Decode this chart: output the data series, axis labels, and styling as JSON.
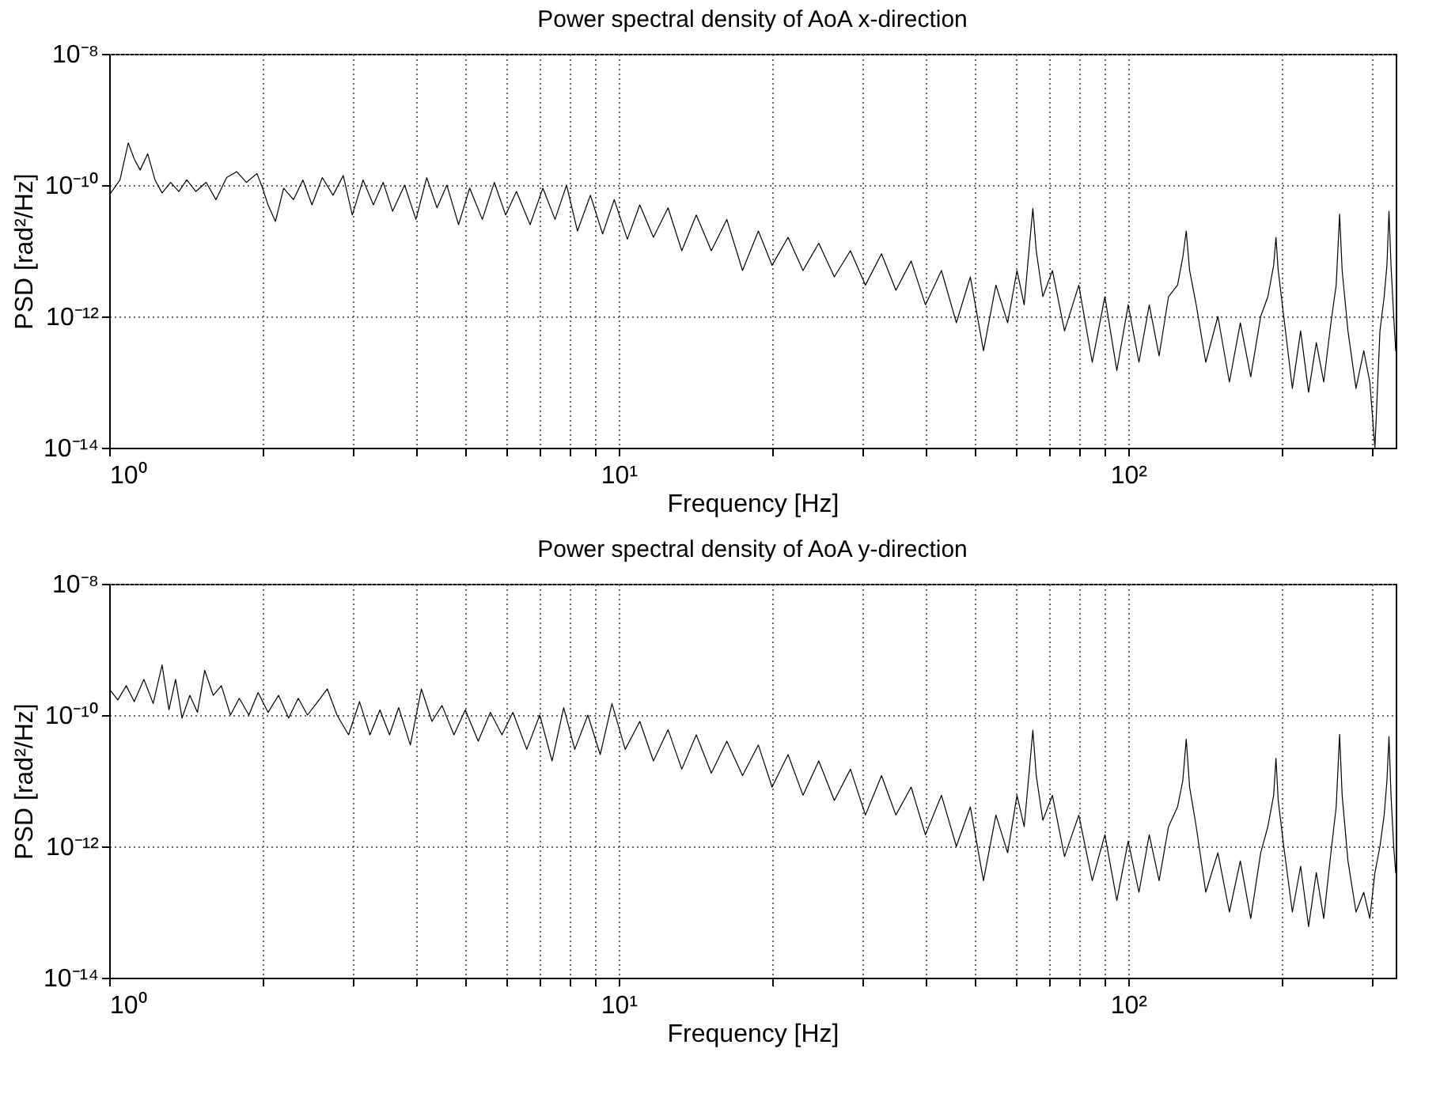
{
  "chart_data": [
    {
      "type": "line",
      "title": "Power spectral density of AoA x-direction",
      "xlabel": "Frequency [Hz]",
      "ylabel": "PSD [rad²/Hz]",
      "log": "xy",
      "grid": true,
      "xlim": [
        1,
        335
      ],
      "ylim": [
        1e-14,
        1e-08
      ],
      "xticks": [
        {
          "value": 1,
          "label": "10⁰"
        },
        {
          "value": 2,
          "label": null
        },
        {
          "value": 3,
          "label": null
        },
        {
          "value": 4,
          "label": null
        },
        {
          "value": 5,
          "label": null
        },
        {
          "value": 6,
          "label": null
        },
        {
          "value": 7,
          "label": null
        },
        {
          "value": 8,
          "label": null
        },
        {
          "value": 9,
          "label": null
        },
        {
          "value": 10,
          "label": "10¹"
        },
        {
          "value": 20,
          "label": null
        },
        {
          "value": 30,
          "label": null
        },
        {
          "value": 40,
          "label": null
        },
        {
          "value": 50,
          "label": null
        },
        {
          "value": 60,
          "label": null
        },
        {
          "value": 70,
          "label": null
        },
        {
          "value": 80,
          "label": null
        },
        {
          "value": 90,
          "label": null
        },
        {
          "value": 100,
          "label": "10²"
        },
        {
          "value": 200,
          "label": null
        },
        {
          "value": 300,
          "label": null
        }
      ],
      "yticks": [
        {
          "value": 1e-14,
          "label": "10⁻¹⁴"
        },
        {
          "value": 1e-12,
          "label": "10⁻¹²"
        },
        {
          "value": 1e-10,
          "label": "10⁻¹⁰"
        },
        {
          "value": 1e-08,
          "label": "10⁻⁸"
        }
      ],
      "x": [
        1,
        1.05,
        1.09,
        1.12,
        1.15,
        1.19,
        1.23,
        1.27,
        1.32,
        1.37,
        1.42,
        1.48,
        1.55,
        1.62,
        1.7,
        1.78,
        1.86,
        1.95,
        2.0,
        2.05,
        2.12,
        2.2,
        2.3,
        2.4,
        2.5,
        2.62,
        2.75,
        2.88,
        3.0,
        3.15,
        3.3,
        3.45,
        3.6,
        3.8,
        4.0,
        4.2,
        4.4,
        4.6,
        4.85,
        5.1,
        5.4,
        5.7,
        6.0,
        6.3,
        6.7,
        7.1,
        7.5,
        7.9,
        8.3,
        8.8,
        9.3,
        9.8,
        10.4,
        11,
        11.7,
        12.5,
        13.3,
        14.2,
        15.2,
        16.3,
        17.5,
        18.8,
        20,
        21.5,
        23,
        24.7,
        26.5,
        28.5,
        30.5,
        32.8,
        35,
        37.5,
        40,
        43,
        46,
        49,
        52,
        55,
        58,
        60.5,
        62.5,
        64,
        65,
        66,
        68,
        71,
        75,
        80,
        85,
        90,
        95,
        100,
        105,
        110,
        115,
        120,
        125,
        128,
        130,
        132,
        136,
        142,
        150,
        158,
        166,
        174,
        182,
        188,
        193,
        195,
        197,
        202,
        210,
        218,
        226,
        234,
        242,
        250,
        256,
        260,
        263,
        270,
        280,
        290,
        298,
        305,
        312,
        318,
        322,
        325,
        328,
        332,
        335
      ],
      "series": [
        {
          "color": "#000000",
          "values": [
            7e-11,
            1.2e-10,
            4.4e-10,
            2.5e-10,
            1.7e-10,
            3e-10,
            1.2e-10,
            7.6e-11,
            1.1e-10,
            8e-11,
            1.2e-10,
            8e-11,
            1.1e-10,
            6e-11,
            1.3e-10,
            1.6e-10,
            1.1e-10,
            1.5e-10,
            9e-11,
            5e-11,
            2.8e-11,
            9e-11,
            6e-11,
            1.2e-10,
            5e-11,
            1.3e-10,
            7e-11,
            1.4e-10,
            3.5e-11,
            1.2e-10,
            5e-11,
            1.1e-10,
            4e-11,
            1e-10,
            3e-11,
            1.3e-10,
            4.5e-11,
            1e-10,
            2.5e-11,
            9e-11,
            3e-11,
            1.1e-10,
            3.5e-11,
            8e-11,
            2.5e-11,
            9e-11,
            3e-11,
            1e-10,
            2e-11,
            7e-11,
            1.8e-11,
            6e-11,
            1.5e-11,
            5e-11,
            1.6e-11,
            4.5e-11,
            1e-11,
            3.5e-11,
            1e-11,
            3e-11,
            5e-12,
            2e-11,
            6e-12,
            1.6e-11,
            5e-12,
            1.3e-11,
            4e-12,
            1e-11,
            3e-12,
            9e-12,
            2.5e-12,
            7e-12,
            1.5e-12,
            5e-12,
            8e-13,
            4e-12,
            3e-13,
            3e-12,
            8e-13,
            5e-12,
            1.5e-12,
            1.2e-11,
            4.4e-11,
            1e-11,
            2e-12,
            5e-12,
            6e-13,
            3e-12,
            2e-13,
            2e-12,
            1.5e-13,
            1.5e-12,
            2e-13,
            1.5e-12,
            2.5e-13,
            2e-12,
            3e-12,
            8e-12,
            2e-11,
            5e-12,
            1.5e-12,
            2e-13,
            1e-12,
            1e-13,
            8e-13,
            1.2e-13,
            1e-12,
            2e-12,
            6e-12,
            1.6e-11,
            5e-12,
            1e-12,
            8e-14,
            6e-13,
            7e-14,
            4e-13,
            1e-13,
            8e-13,
            3e-12,
            3.6e-11,
            5e-12,
            6e-13,
            8e-14,
            3e-13,
            1e-13,
            1e-14,
            6e-13,
            2e-12,
            6e-12,
            4e-11,
            6e-12,
            1e-12,
            3e-13
          ]
        }
      ]
    },
    {
      "type": "line",
      "title": "Power spectral density of AoA y-direction",
      "xlabel": "Frequency [Hz]",
      "ylabel": "PSD [rad²/Hz]",
      "log": "xy",
      "grid": true,
      "xlim": [
        1,
        335
      ],
      "ylim": [
        1e-14,
        1e-08
      ],
      "xticks": [
        {
          "value": 1,
          "label": "10⁰"
        },
        {
          "value": 2,
          "label": null
        },
        {
          "value": 3,
          "label": null
        },
        {
          "value": 4,
          "label": null
        },
        {
          "value": 5,
          "label": null
        },
        {
          "value": 6,
          "label": null
        },
        {
          "value": 7,
          "label": null
        },
        {
          "value": 8,
          "label": null
        },
        {
          "value": 9,
          "label": null
        },
        {
          "value": 10,
          "label": "10¹"
        },
        {
          "value": 20,
          "label": null
        },
        {
          "value": 30,
          "label": null
        },
        {
          "value": 40,
          "label": null
        },
        {
          "value": 50,
          "label": null
        },
        {
          "value": 60,
          "label": null
        },
        {
          "value": 70,
          "label": null
        },
        {
          "value": 80,
          "label": null
        },
        {
          "value": 90,
          "label": null
        },
        {
          "value": 100,
          "label": "10²"
        },
        {
          "value": 200,
          "label": null
        },
        {
          "value": 300,
          "label": null
        }
      ],
      "yticks": [
        {
          "value": 1e-14,
          "label": "10⁻¹⁴"
        },
        {
          "value": 1e-12,
          "label": "10⁻¹²"
        },
        {
          "value": 1e-10,
          "label": "10⁻¹⁰"
        },
        {
          "value": 1e-08,
          "label": "10⁻⁸"
        }
      ],
      "x": [
        1,
        1.04,
        1.08,
        1.12,
        1.17,
        1.22,
        1.27,
        1.31,
        1.35,
        1.39,
        1.44,
        1.49,
        1.54,
        1.6,
        1.66,
        1.73,
        1.8,
        1.88,
        1.96,
        2.05,
        2.15,
        2.25,
        2.35,
        2.45,
        2.55,
        2.68,
        2.8,
        2.95,
        3.1,
        3.25,
        3.4,
        3.55,
        3.7,
        3.9,
        4.1,
        4.3,
        4.5,
        4.75,
        5.0,
        5.3,
        5.6,
        5.9,
        6.2,
        6.6,
        7.0,
        7.4,
        7.8,
        8.2,
        8.7,
        9.2,
        9.7,
        10.3,
        11,
        11.7,
        12.5,
        13.3,
        14.2,
        15.2,
        16.3,
        17.5,
        18.8,
        20,
        21.5,
        23,
        24.7,
        26.5,
        28.5,
        30.5,
        32.8,
        35,
        37.5,
        40,
        43,
        46,
        49,
        52,
        55,
        58,
        60.5,
        62.5,
        64,
        65,
        66,
        68,
        71,
        75,
        80,
        85,
        90,
        95,
        100,
        105,
        110,
        115,
        120,
        125,
        128,
        130,
        132,
        136,
        142,
        150,
        158,
        166,
        174,
        182,
        188,
        193,
        195,
        197,
        202,
        210,
        218,
        226,
        234,
        242,
        250,
        256,
        260,
        263,
        270,
        280,
        290,
        298,
        305,
        312,
        318,
        322,
        325,
        328,
        332,
        335
      ],
      "series": [
        {
          "color": "#000000",
          "values": [
            2.5e-10,
            1.7e-10,
            2.8e-10,
            1.6e-10,
            3.5e-10,
            1.5e-10,
            5.8e-10,
            1.2e-10,
            3.5e-10,
            9e-11,
            2e-10,
            1.1e-10,
            4.8e-10,
            2e-10,
            2.8e-10,
            1e-10,
            1.8e-10,
            1e-10,
            2.2e-10,
            1.1e-10,
            2e-10,
            9e-11,
            1.8e-10,
            1e-10,
            1.5e-10,
            2.5e-10,
            1e-10,
            5e-11,
            1.6e-10,
            5e-11,
            1.2e-10,
            5e-11,
            1.3e-10,
            3.5e-11,
            2.5e-10,
            8e-11,
            1.4e-10,
            5e-11,
            1.2e-10,
            4e-11,
            1.1e-10,
            5e-11,
            1.1e-10,
            3e-11,
            1e-10,
            2e-11,
            1.3e-10,
            3e-11,
            1e-10,
            2.5e-11,
            1.5e-10,
            3e-11,
            8e-11,
            2e-11,
            6e-11,
            1.5e-11,
            5e-11,
            1.3e-11,
            4e-11,
            1.2e-11,
            3.5e-11,
            8e-12,
            2.5e-11,
            6e-12,
            2e-11,
            5e-12,
            1.5e-11,
            3e-12,
            1.2e-11,
            3e-12,
            8e-12,
            1.5e-12,
            6e-12,
            1e-12,
            4e-12,
            3e-13,
            3e-12,
            8e-13,
            6e-12,
            2e-12,
            1.5e-11,
            5.9e-11,
            1.2e-11,
            2.5e-12,
            6e-12,
            7e-13,
            3e-12,
            3e-13,
            1.5e-12,
            1.5e-13,
            1.2e-12,
            2e-13,
            1.5e-12,
            3e-13,
            2e-12,
            4e-12,
            1e-11,
            4.3e-11,
            8e-12,
            2e-12,
            2e-13,
            8e-13,
            1e-13,
            6e-13,
            8e-14,
            8e-13,
            2e-12,
            6e-12,
            2.2e-11,
            5e-12,
            1e-12,
            1e-13,
            5e-13,
            6e-14,
            4e-13,
            8e-14,
            8e-13,
            4e-12,
            5.1e-11,
            6e-12,
            6e-13,
            1e-13,
            2e-13,
            8e-14,
            4e-13,
            1e-12,
            3e-12,
            1e-11,
            4.7e-11,
            6e-12,
            1e-12,
            4e-13
          ]
        }
      ]
    }
  ]
}
